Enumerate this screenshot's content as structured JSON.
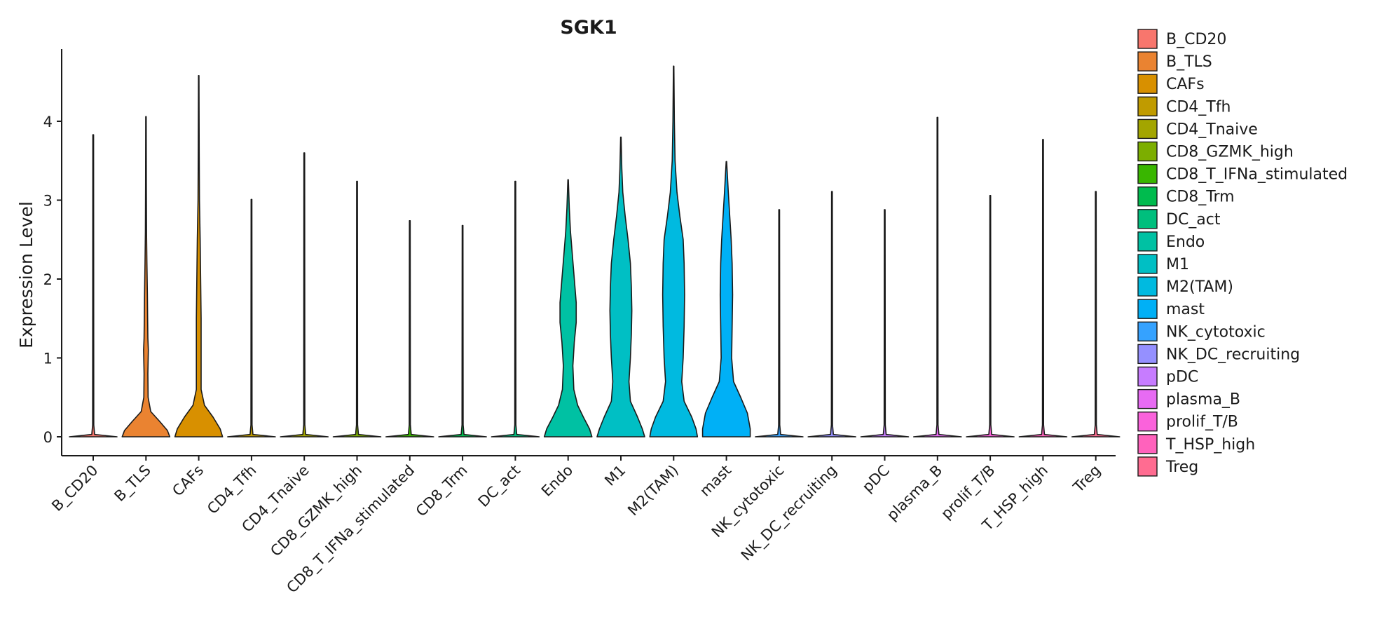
{
  "chart_data": {
    "type": "violin",
    "title": "SGK1",
    "xlabel": "",
    "ylabel": "Expression Level",
    "ylim": [
      -0.23,
      4.93
    ],
    "yticks": [
      0,
      1,
      2,
      3,
      4
    ],
    "grid": false,
    "legend_position": "right",
    "categories": [
      "B_CD20",
      "B_TLS",
      "CAFs",
      "CD4_Tfh",
      "CD4_Tnaive",
      "CD8_GZMK_high",
      "CD8_T_IFNa_stimulated",
      "CD8_Trm",
      "DC_act",
      "Endo",
      "M1",
      "M2(TAM)",
      "mast",
      "NK_cytotoxic",
      "NK_DC_recruiting",
      "pDC",
      "plasma_B",
      "prolif_T/B",
      "T_HSP_high",
      "Treg"
    ],
    "colors": [
      "#F8766D",
      "#EA8331",
      "#D89000",
      "#C09B00",
      "#A3A500",
      "#7CAE00",
      "#39B600",
      "#00BB4E",
      "#00BF7D",
      "#00C1A3",
      "#00BFC4",
      "#00BAE0",
      "#00B0F6",
      "#35A2FF",
      "#9590FF",
      "#C77CFF",
      "#E76BF3",
      "#FA62DB",
      "#FF62BC",
      "#FF6C91"
    ],
    "series": [
      {
        "name": "B_CD20",
        "max": 3.83,
        "profile": [
          [
            0,
            0.5
          ],
          [
            0.03,
            0.03
          ],
          [
            0.15,
            0.012
          ],
          [
            3.83,
            0.008
          ]
        ]
      },
      {
        "name": "B_TLS",
        "max": 4.06,
        "profile": [
          [
            0,
            0.5
          ],
          [
            0.08,
            0.45
          ],
          [
            0.2,
            0.28
          ],
          [
            0.32,
            0.1
          ],
          [
            0.5,
            0.045
          ],
          [
            0.8,
            0.04
          ],
          [
            1.1,
            0.05
          ],
          [
            1.25,
            0.04
          ],
          [
            1.5,
            0.035
          ],
          [
            1.8,
            0.03
          ],
          [
            2.2,
            0.02
          ],
          [
            2.6,
            0.012
          ],
          [
            3.2,
            0.008
          ],
          [
            4.06,
            0.005
          ]
        ]
      },
      {
        "name": "CAFs",
        "max": 4.58,
        "profile": [
          [
            0,
            0.5
          ],
          [
            0.1,
            0.45
          ],
          [
            0.25,
            0.3
          ],
          [
            0.4,
            0.12
          ],
          [
            0.6,
            0.05
          ],
          [
            1.0,
            0.05
          ],
          [
            1.5,
            0.05
          ],
          [
            2.0,
            0.04
          ],
          [
            2.5,
            0.03
          ],
          [
            3.0,
            0.015
          ],
          [
            3.6,
            0.01
          ],
          [
            4.58,
            0.005
          ]
        ]
      },
      {
        "name": "CD4_Tfh",
        "max": 3.01,
        "profile": [
          [
            0,
            0.5
          ],
          [
            0.03,
            0.03
          ],
          [
            0.15,
            0.012
          ],
          [
            3.01,
            0.008
          ]
        ]
      },
      {
        "name": "CD4_Tnaive",
        "max": 3.6,
        "profile": [
          [
            0,
            0.5
          ],
          [
            0.03,
            0.03
          ],
          [
            0.15,
            0.012
          ],
          [
            3.6,
            0.008
          ]
        ]
      },
      {
        "name": "CD8_GZMK_high",
        "max": 3.24,
        "profile": [
          [
            0,
            0.5
          ],
          [
            0.03,
            0.03
          ],
          [
            0.15,
            0.012
          ],
          [
            3.24,
            0.008
          ]
        ]
      },
      {
        "name": "CD8_T_IFNa_stimulated",
        "max": 2.74,
        "profile": [
          [
            0,
            0.5
          ],
          [
            0.03,
            0.03
          ],
          [
            0.15,
            0.012
          ],
          [
            2.74,
            0.008
          ]
        ]
      },
      {
        "name": "CD8_Trm",
        "max": 2.68,
        "profile": [
          [
            0,
            0.5
          ],
          [
            0.03,
            0.03
          ],
          [
            0.15,
            0.012
          ],
          [
            2.68,
            0.008
          ]
        ]
      },
      {
        "name": "DC_act",
        "max": 3.24,
        "profile": [
          [
            0,
            0.5
          ],
          [
            0.03,
            0.03
          ],
          [
            0.15,
            0.012
          ],
          [
            3.24,
            0.008
          ]
        ]
      },
      {
        "name": "Endo",
        "max": 3.26,
        "profile": [
          [
            0,
            0.5
          ],
          [
            0.1,
            0.45
          ],
          [
            0.25,
            0.32
          ],
          [
            0.4,
            0.2
          ],
          [
            0.6,
            0.12
          ],
          [
            0.9,
            0.1
          ],
          [
            1.2,
            0.13
          ],
          [
            1.45,
            0.17
          ],
          [
            1.7,
            0.17
          ],
          [
            2.0,
            0.13
          ],
          [
            2.3,
            0.09
          ],
          [
            2.6,
            0.05
          ],
          [
            2.9,
            0.025
          ],
          [
            3.26,
            0.005
          ]
        ]
      },
      {
        "name": "M1",
        "max": 3.8,
        "profile": [
          [
            0,
            0.5
          ],
          [
            0.1,
            0.45
          ],
          [
            0.25,
            0.35
          ],
          [
            0.45,
            0.2
          ],
          [
            0.7,
            0.17
          ],
          [
            1.0,
            0.2
          ],
          [
            1.3,
            0.22
          ],
          [
            1.6,
            0.23
          ],
          [
            1.9,
            0.22
          ],
          [
            2.2,
            0.2
          ],
          [
            2.5,
            0.15
          ],
          [
            2.8,
            0.09
          ],
          [
            3.1,
            0.04
          ],
          [
            3.4,
            0.02
          ],
          [
            3.8,
            0.005
          ]
        ]
      },
      {
        "name": "M2(TAM)",
        "max": 4.7,
        "profile": [
          [
            0,
            0.5
          ],
          [
            0.1,
            0.47
          ],
          [
            0.25,
            0.38
          ],
          [
            0.45,
            0.22
          ],
          [
            0.7,
            0.17
          ],
          [
            1.0,
            0.2
          ],
          [
            1.4,
            0.22
          ],
          [
            1.8,
            0.23
          ],
          [
            2.2,
            0.22
          ],
          [
            2.5,
            0.2
          ],
          [
            2.8,
            0.13
          ],
          [
            3.1,
            0.07
          ],
          [
            3.5,
            0.03
          ],
          [
            4.0,
            0.015
          ],
          [
            4.7,
            0.005
          ]
        ]
      },
      {
        "name": "mast",
        "max": 3.49,
        "profile": [
          [
            0,
            0.5
          ],
          [
            0.1,
            0.5
          ],
          [
            0.3,
            0.44
          ],
          [
            0.5,
            0.3
          ],
          [
            0.7,
            0.15
          ],
          [
            1.0,
            0.11
          ],
          [
            1.4,
            0.12
          ],
          [
            1.8,
            0.13
          ],
          [
            2.2,
            0.12
          ],
          [
            2.5,
            0.1
          ],
          [
            2.8,
            0.07
          ],
          [
            3.1,
            0.04
          ],
          [
            3.49,
            0.005
          ]
        ]
      },
      {
        "name": "NK_cytotoxic",
        "max": 2.88,
        "profile": [
          [
            0,
            0.5
          ],
          [
            0.03,
            0.03
          ],
          [
            0.15,
            0.012
          ],
          [
            2.88,
            0.008
          ]
        ]
      },
      {
        "name": "NK_DC_recruiting",
        "max": 3.11,
        "profile": [
          [
            0,
            0.5
          ],
          [
            0.03,
            0.03
          ],
          [
            0.15,
            0.012
          ],
          [
            3.11,
            0.008
          ]
        ]
      },
      {
        "name": "pDC",
        "max": 2.88,
        "profile": [
          [
            0,
            0.5
          ],
          [
            0.03,
            0.03
          ],
          [
            0.15,
            0.012
          ],
          [
            2.88,
            0.008
          ]
        ]
      },
      {
        "name": "plasma_B",
        "max": 4.05,
        "profile": [
          [
            0,
            0.5
          ],
          [
            0.03,
            0.03
          ],
          [
            0.15,
            0.012
          ],
          [
            4.05,
            0.008
          ]
        ]
      },
      {
        "name": "prolif_T/B",
        "max": 3.06,
        "profile": [
          [
            0,
            0.5
          ],
          [
            0.03,
            0.03
          ],
          [
            0.15,
            0.012
          ],
          [
            3.06,
            0.008
          ]
        ]
      },
      {
        "name": "T_HSP_high",
        "max": 3.77,
        "profile": [
          [
            0,
            0.5
          ],
          [
            0.03,
            0.03
          ],
          [
            0.15,
            0.012
          ],
          [
            3.77,
            0.008
          ]
        ]
      },
      {
        "name": "Treg",
        "max": 3.11,
        "profile": [
          [
            0,
            0.5
          ],
          [
            0.03,
            0.03
          ],
          [
            0.15,
            0.012
          ],
          [
            3.11,
            0.008
          ]
        ]
      }
    ]
  }
}
